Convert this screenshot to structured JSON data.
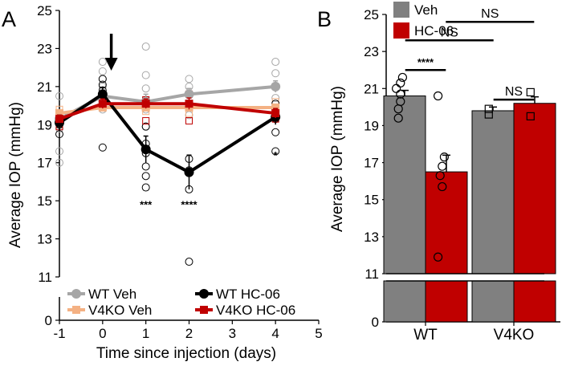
{
  "chart_data": [
    {
      "panel_label": "A",
      "type": "line",
      "xlabel": "Time since injection (days)",
      "ylabel": "Average IOP (mmHg)",
      "xlim": [
        -1,
        5
      ],
      "ylim": [
        0,
        25
      ],
      "axis_break": [
        1,
        11
      ],
      "xticks": [
        "-1",
        "0",
        "1",
        "2",
        "3",
        "4",
        "5"
      ],
      "yticks": [
        "0",
        "11",
        "13",
        "15",
        "17",
        "19",
        "21",
        "23",
        "25"
      ],
      "x": [
        -1,
        0,
        1,
        2,
        4
      ],
      "injection_day": 0.2,
      "series": [
        {
          "name": "WT Veh",
          "color": "#a6a6a6",
          "values": [
            19.3,
            20.5,
            20.2,
            20.6,
            21.0
          ],
          "errors": [
            0.25,
            0.3,
            0.4,
            0.3,
            0.3
          ],
          "points": [
            [
              -1,
              17.0
            ],
            [
              -1,
              17.6
            ],
            [
              -1,
              18.8
            ],
            [
              -1,
              19.2
            ],
            [
              -1,
              19.6
            ],
            [
              -1,
              20.5
            ],
            [
              0,
              19.8
            ],
            [
              0,
              20.6
            ],
            [
              0,
              21.0
            ],
            [
              0,
              21.4
            ],
            [
              0,
              21.8
            ],
            [
              0,
              22.3
            ],
            [
              1,
              18.9
            ],
            [
              1,
              19.8
            ],
            [
              1,
              20.3
            ],
            [
              1,
              20.9
            ],
            [
              1,
              21.6
            ],
            [
              1,
              23.1
            ],
            [
              2,
              19.5
            ],
            [
              2,
              20.0
            ],
            [
              2,
              20.6
            ],
            [
              2,
              21.0
            ],
            [
              2,
              21.4
            ],
            [
              4,
              19.8
            ],
            [
              4,
              20.4
            ],
            [
              4,
              21.0
            ],
            [
              4,
              21.7
            ],
            [
              4,
              22.3
            ]
          ]
        },
        {
          "name": "V4KO Veh",
          "color": "#f4b183",
          "values": [
            19.6,
            19.9,
            19.9,
            19.9,
            19.9
          ],
          "errors": [
            0.15,
            0.15,
            0.15,
            0.15,
            0.15
          ],
          "points": [
            [
              -1,
              19.0
            ],
            [
              -1,
              19.8
            ],
            [
              0,
              19.9
            ],
            [
              0,
              20.1
            ],
            [
              1,
              19.7
            ],
            [
              2,
              19.6
            ],
            [
              4,
              20.2
            ]
          ]
        },
        {
          "name": "WT HC-06",
          "color": "#000000",
          "values": [
            19.1,
            20.6,
            17.7,
            16.5,
            19.4
          ],
          "errors": [
            0.4,
            0.35,
            0.7,
            0.9,
            0.4
          ],
          "points": [
            [
              -1,
              18.5
            ],
            [
              -1,
              19.0
            ],
            [
              -1,
              19.5
            ],
            [
              0,
              17.8
            ],
            [
              0,
              20.2
            ],
            [
              0,
              20.8
            ],
            [
              0,
              21.1
            ],
            [
              0,
              21.4
            ],
            [
              1,
              15.7
            ],
            [
              1,
              16.3
            ],
            [
              1,
              16.8
            ],
            [
              1,
              17.5
            ],
            [
              1,
              18.0
            ],
            [
              1,
              18.9
            ],
            [
              2,
              11.8
            ],
            [
              2,
              15.6
            ],
            [
              2,
              16.6
            ],
            [
              2,
              17.2
            ],
            [
              4,
              17.6
            ],
            [
              4,
              18.6
            ],
            [
              4,
              19.3
            ],
            [
              4,
              20.1
            ]
          ]
        },
        {
          "name": "V4KO HC-06",
          "color": "#c00000",
          "values": [
            19.3,
            20.1,
            20.1,
            20.1,
            19.6
          ],
          "errors": [
            0.2,
            0.25,
            0.25,
            0.3,
            0.25
          ],
          "points": [
            [
              -1,
              18.9
            ],
            [
              -1,
              19.4
            ],
            [
              0,
              19.9
            ],
            [
              0,
              20.5
            ],
            [
              1,
              19.2
            ],
            [
              1,
              20.3
            ],
            [
              2,
              19.2
            ],
            [
              2,
              20.6
            ],
            [
              4,
              19.3
            ],
            [
              4,
              19.8
            ]
          ]
        }
      ],
      "annotations": [
        {
          "x": 1,
          "y": 14.6,
          "text": "***"
        },
        {
          "x": 2,
          "y": 14.6,
          "text": "****"
        },
        {
          "x": 4,
          "y": 17.2,
          "text": "*"
        }
      ]
    },
    {
      "panel_label": "B",
      "type": "bar",
      "ylabel": "Average IOP (mmHg)",
      "ylim": [
        0,
        25
      ],
      "axis_break": [
        1,
        11
      ],
      "yticks": [
        "0",
        "11",
        "13",
        "15",
        "17",
        "19",
        "21",
        "23",
        "25"
      ],
      "categories": [
        "WT",
        "V4KO"
      ],
      "series": [
        {
          "name": "Veh",
          "color": "#808080",
          "values": [
            20.6,
            19.8
          ],
          "errors": [
            0.3,
            0.2
          ],
          "points": [
            [
              [
                19.4,
                0.35
              ],
              [
                19.9,
                0.35
              ],
              [
                20.3,
                0.4
              ],
              [
                20.7,
                0.4
              ],
              [
                21.0,
                0.3
              ],
              [
                21.3,
                0.4
              ],
              [
                21.6,
                0.45
              ]
            ],
            [
              [
                19.6,
                0.4
              ],
              [
                19.9,
                0.4
              ]
            ]
          ]
        },
        {
          "name": "HC-06",
          "color": "#c00000",
          "values": [
            16.5,
            20.2
          ],
          "errors": [
            0.9,
            0.35
          ],
          "points": [
            [
              [
                11.9,
                0.3
              ],
              [
                15.7,
                0.4
              ],
              [
                16.3,
                0.35
              ],
              [
                16.8,
                0.4
              ],
              [
                17.3,
                0.45
              ],
              [
                20.6,
                0.3
              ]
            ],
            [
              [
                19.5,
                0.4
              ],
              [
                20.8,
                0.4
              ]
            ]
          ]
        }
      ],
      "comparisons": [
        {
          "y": 22.0,
          "x1": 0.77,
          "x2": 1.23,
          "text": "****"
        },
        {
          "y": 23.6,
          "x1": 0.77,
          "x2": 1.77,
          "text": "NS"
        },
        {
          "y": 24.6,
          "x1": 1.23,
          "x2": 2.23,
          "text": "NS"
        },
        {
          "y": 20.4,
          "x1": 1.77,
          "x2": 2.23,
          "text": "NS"
        }
      ]
    }
  ]
}
